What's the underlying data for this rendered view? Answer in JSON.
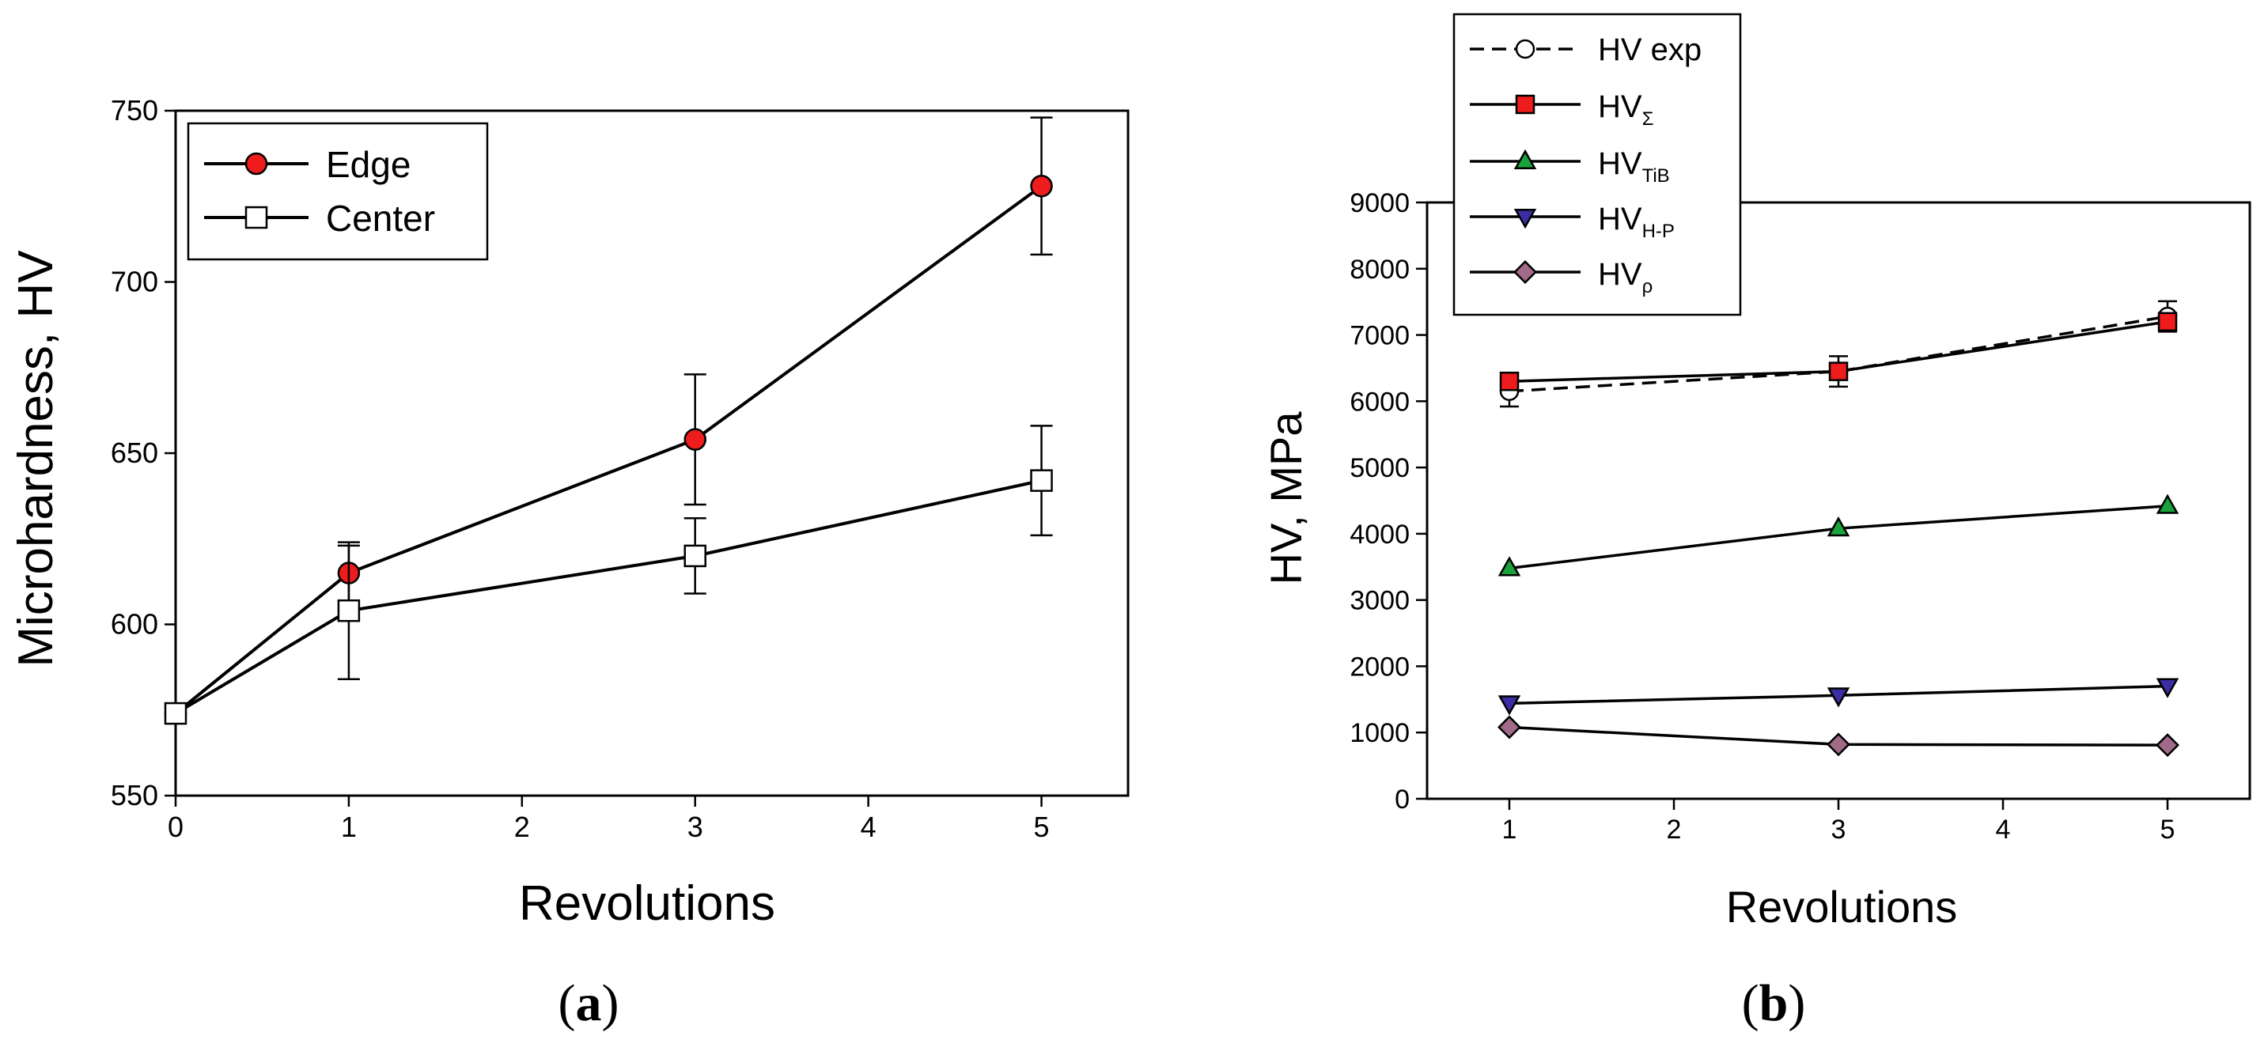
{
  "chart_data": [
    {
      "type": "line",
      "panel_label": "a",
      "title": "",
      "xlabel": "Revolutions",
      "ylabel": "Microhardness, HV",
      "xlim": [
        0,
        5.5
      ],
      "ylim": [
        550,
        750
      ],
      "xticks": [
        0,
        1,
        2,
        3,
        4,
        5
      ],
      "yticks": [
        550,
        600,
        650,
        700,
        750
      ],
      "grid": false,
      "legend_position": "top-left",
      "series": [
        {
          "name": "Edge",
          "marker": "circle",
          "color": "#ee1c1c",
          "x": [
            0,
            1,
            3,
            5
          ],
          "y": [
            574,
            615,
            654,
            728
          ],
          "err": [
            0,
            8,
            19,
            20
          ]
        },
        {
          "name": "Center",
          "marker": "square",
          "color": "#ffffff",
          "x": [
            0,
            1,
            3,
            5
          ],
          "y": [
            574,
            604,
            620,
            642
          ],
          "err": [
            0,
            20,
            11,
            16
          ]
        }
      ]
    },
    {
      "type": "line",
      "panel_label": "b",
      "title": "",
      "xlabel": "Revolutions",
      "ylabel": "HV, MPa",
      "xlim": [
        0.5,
        5.5
      ],
      "ylim": [
        0,
        9000
      ],
      "xticks": [
        1,
        2,
        3,
        4,
        5
      ],
      "yticks": [
        0,
        1000,
        2000,
        3000,
        4000,
        5000,
        6000,
        7000,
        8000,
        9000
      ],
      "grid": false,
      "legend_position": "top-left, above plot",
      "series": [
        {
          "name": "HV exp",
          "name_main": "HV exp",
          "name_sub": "",
          "marker": "circle",
          "color": "#ffffff",
          "dashed": true,
          "x": [
            1,
            3,
            5
          ],
          "y": [
            6150,
            6450,
            7280
          ],
          "err": [
            230,
            230,
            230
          ]
        },
        {
          "name": "HVΣ",
          "name_main": "HV",
          "name_sub": "Σ",
          "marker": "square",
          "color": "#ee1c1c",
          "dashed": false,
          "x": [
            1,
            3,
            5
          ],
          "y": [
            6300,
            6450,
            7200
          ],
          "err": [
            0,
            0,
            0
          ]
        },
        {
          "name": "HVTiB",
          "name_main": "HV",
          "name_sub": "TiB",
          "marker": "triangle-up",
          "color": "#1aa33a",
          "dashed": false,
          "x": [
            1,
            3,
            5
          ],
          "y": [
            3480,
            4080,
            4420
          ],
          "err": [
            0,
            0,
            0
          ]
        },
        {
          "name": "HVH-P",
          "name_main": "HV",
          "name_sub": "H-P",
          "marker": "triangle-down",
          "color": "#3b2ea3",
          "dashed": false,
          "x": [
            1,
            3,
            5
          ],
          "y": [
            1440,
            1560,
            1700
          ],
          "err": [
            0,
            0,
            0
          ]
        },
        {
          "name": "HVρ",
          "name_main": "HV",
          "name_sub": "ρ",
          "marker": "diamond",
          "color": "#a06a88",
          "dashed": false,
          "x": [
            1,
            3,
            5
          ],
          "y": [
            1080,
            820,
            810
          ],
          "err": [
            0,
            0,
            0
          ]
        }
      ]
    }
  ]
}
